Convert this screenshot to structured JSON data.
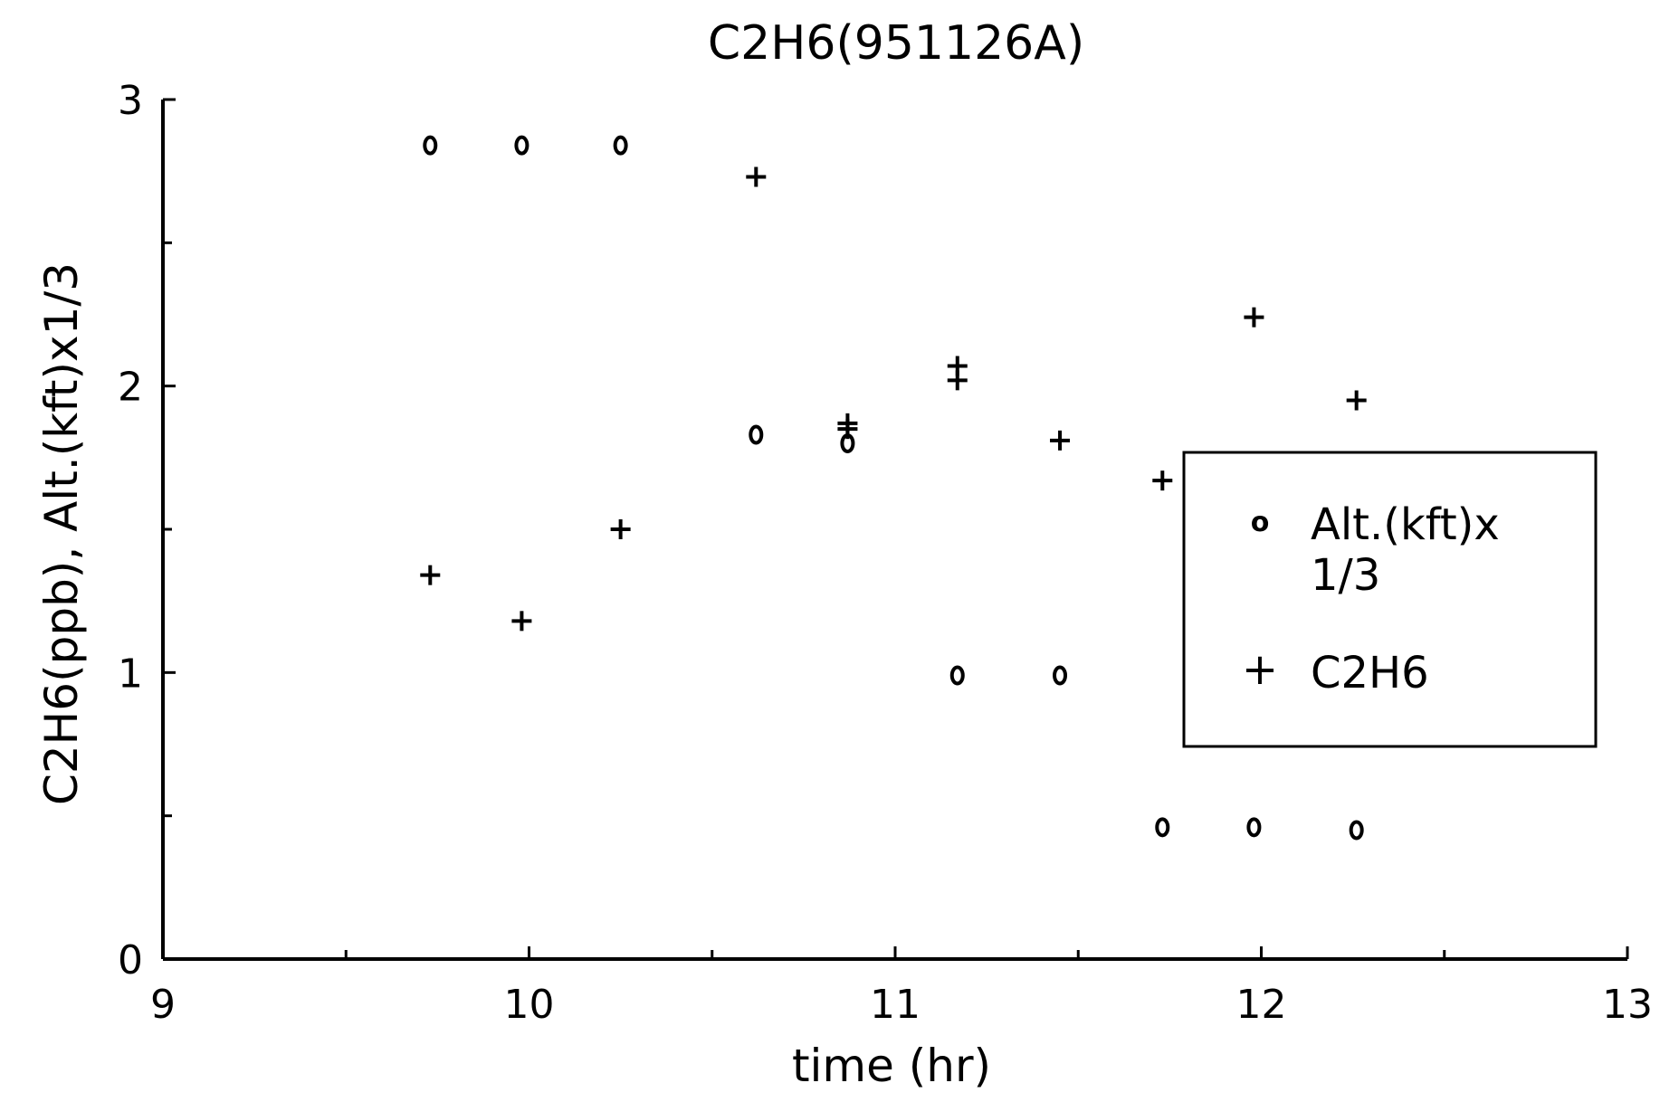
{
  "chart_data": {
    "type": "scatter",
    "title": "C2H6(951126A)",
    "xlabel": "time (hr)",
    "ylabel": "C2H6(ppb), Alt.(kft)x1/3",
    "xlim": [
      9,
      13
    ],
    "ylim": [
      0,
      3
    ],
    "x_ticks": [
      "9",
      "10",
      "11",
      "12",
      "13"
    ],
    "y_ticks": [
      "0",
      "1",
      "2",
      "3"
    ],
    "grid": false,
    "legend_position": "right",
    "series": [
      {
        "name": "Alt.(kft)x 1/3",
        "marker": "o",
        "x": [
          9.73,
          9.98,
          10.25,
          10.62,
          10.87,
          11.17,
          11.45,
          11.73,
          11.98,
          12.26
        ],
        "y": [
          2.84,
          2.84,
          2.84,
          1.83,
          1.8,
          0.99,
          0.99,
          0.46,
          0.46,
          0.45
        ]
      },
      {
        "name": "C2H6",
        "marker": "+",
        "x": [
          9.73,
          9.98,
          10.25,
          10.62,
          10.87,
          10.87,
          11.17,
          11.17,
          11.45,
          11.73,
          11.98,
          12.26
        ],
        "y": [
          1.34,
          1.18,
          1.5,
          2.73,
          1.87,
          1.85,
          2.07,
          2.02,
          1.81,
          1.67,
          2.24,
          1.95
        ]
      }
    ]
  },
  "legend": {
    "alt_line1": "Alt.(kft)x",
    "alt_line2": "1/3",
    "alt_marker": "o",
    "c2h6_label": "C2H6",
    "c2h6_marker": "+"
  }
}
